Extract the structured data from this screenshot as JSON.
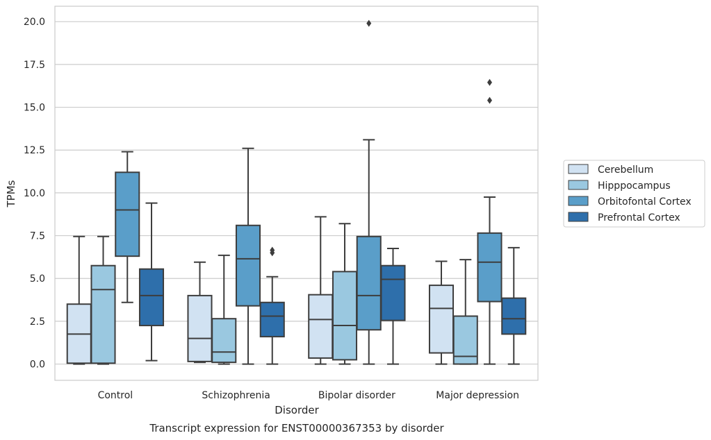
{
  "chart_data": {
    "type": "box",
    "title": "Transcript expression for ENST00000367353 by disorder",
    "xlabel": "Disorder",
    "ylabel": "TPMs",
    "ylim": [
      -0.95,
      20.9
    ],
    "yticks": [
      "0.0",
      "2.5",
      "5.0",
      "7.5",
      "10.0",
      "12.5",
      "15.0",
      "17.5",
      "20.0"
    ],
    "grid": "horizontal",
    "legend_position": "right",
    "categories": [
      "Control",
      "Schizophrenia",
      "Bipolar disorder",
      "Major depression"
    ],
    "series": [
      {
        "name": "Cerebellum",
        "color": "#d1e2f2",
        "boxes": [
          {
            "min": 0.0,
            "q1": 0.05,
            "median": 1.75,
            "q3": 3.5,
            "max": 7.45,
            "outliers": []
          },
          {
            "min": 0.1,
            "q1": 0.15,
            "median": 1.5,
            "q3": 4.0,
            "max": 5.95,
            "outliers": []
          },
          {
            "min": 0.0,
            "q1": 0.35,
            "median": 2.6,
            "q3": 4.05,
            "max": 8.6,
            "outliers": []
          },
          {
            "min": 0.0,
            "q1": 0.65,
            "median": 3.25,
            "q3": 4.6,
            "max": 6.0,
            "outliers": []
          }
        ]
      },
      {
        "name": "Hipppocampus",
        "color": "#9ac8e0",
        "boxes": [
          {
            "min": 0.0,
            "q1": 0.05,
            "median": 4.35,
            "q3": 5.75,
            "max": 7.45,
            "outliers": []
          },
          {
            "min": 0.0,
            "q1": 0.1,
            "median": 0.7,
            "q3": 2.65,
            "max": 6.35,
            "outliers": []
          },
          {
            "min": 0.0,
            "q1": 0.25,
            "median": 2.25,
            "q3": 5.4,
            "max": 8.2,
            "outliers": []
          },
          {
            "min": 0.0,
            "q1": 0.0,
            "median": 0.45,
            "q3": 2.8,
            "max": 6.1,
            "outliers": []
          }
        ]
      },
      {
        "name": "Orbitofontal Cortex",
        "color": "#5a9ec9",
        "boxes": [
          {
            "min": 3.6,
            "q1": 6.3,
            "median": 9.0,
            "q3": 11.2,
            "max": 12.4,
            "outliers": []
          },
          {
            "min": 0.0,
            "q1": 3.4,
            "median": 6.15,
            "q3": 8.1,
            "max": 12.6,
            "outliers": []
          },
          {
            "min": 0.0,
            "q1": 2.0,
            "median": 4.0,
            "q3": 7.45,
            "max": 13.1,
            "outliers": [
              19.9
            ]
          },
          {
            "min": 0.0,
            "q1": 3.65,
            "median": 5.95,
            "q3": 7.65,
            "max": 9.75,
            "outliers": [
              15.4,
              16.45
            ]
          }
        ]
      },
      {
        "name": "Prefrontal Cortex",
        "color": "#2e6fab",
        "boxes": [
          {
            "min": 0.2,
            "q1": 2.25,
            "median": 4.0,
            "q3": 5.55,
            "max": 9.4,
            "outliers": []
          },
          {
            "min": 0.0,
            "q1": 1.6,
            "median": 2.8,
            "q3": 3.6,
            "max": 5.1,
            "outliers": [
              6.5,
              6.65
            ]
          },
          {
            "min": 0.0,
            "q1": 2.55,
            "median": 4.95,
            "q3": 5.75,
            "max": 6.75,
            "outliers": []
          },
          {
            "min": 0.0,
            "q1": 1.75,
            "median": 2.65,
            "q3": 3.85,
            "max": 6.8,
            "outliers": []
          }
        ]
      }
    ]
  }
}
